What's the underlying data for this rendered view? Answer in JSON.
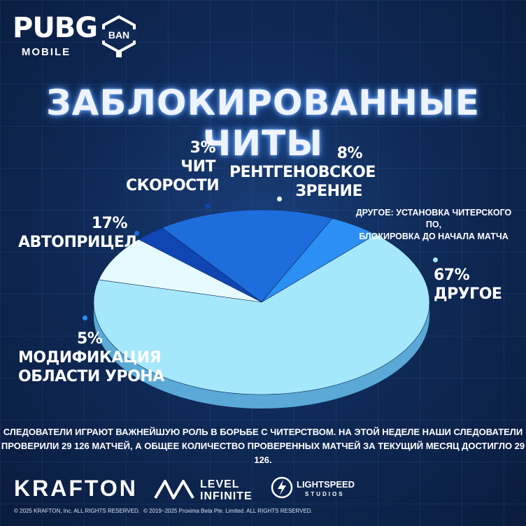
{
  "header": {
    "logo_main": "PUBG",
    "logo_sub": "MOBILE",
    "badge_text": "BAN",
    "title": "ЗАБЛОКИРОВАННЫЕ ЧИТЫ"
  },
  "chart_data": {
    "type": "pie",
    "title": "ЗАБЛОКИРОВАННЫЕ ЧИТЫ",
    "slices": [
      {
        "name": "ДРУГОЕ",
        "value": 67,
        "label": "67%",
        "color": "#a6e8fb"
      },
      {
        "name": "МОДИФИКАЦИЯ ОБЛАСТИ УРОНА",
        "value": 5,
        "label": "5%",
        "color": "#2b8ff4"
      },
      {
        "name": "АВТОПРИЦЕЛ",
        "value": 17,
        "label": "17%",
        "color": "#1e6ddc"
      },
      {
        "name": "ЧИТ СКОРОСТИ",
        "value": 3,
        "label": "3%",
        "color": "#0f46b4"
      },
      {
        "name": "РЕНТГЕНОВСКОЕ ЗРЕНИЕ",
        "value": 8,
        "label": "8%",
        "color": "#e6fbff"
      }
    ]
  },
  "labels": {
    "other_pct": "67%",
    "other_name": "ДРУГОЕ",
    "damage_pct": "5%",
    "damage_line1": "МОДИФИКАЦИЯ",
    "damage_line2": "ОБЛАСТИ УРОНА",
    "aim_pct": "17%",
    "aim_name": "АВТОПРИЦЕЛ",
    "speed_pct": "3%",
    "speed_line1": "ЧИТ",
    "speed_line2": "СКОРОСТИ",
    "xray_pct": "8%",
    "xray_line1": "РЕНТГЕНОВСКОЕ",
    "xray_line2": "ЗРЕНИЕ",
    "other_note_line1": "ДРУГОЕ: УСТАНОВКА ЧИТЕРСКОГО ПО,",
    "other_note_line2": "БЛОКИРОВКА ДО НАЧАЛА МАТЧА"
  },
  "footer": {
    "line1": "СЛЕДОВАТЕЛИ ИГРАЮТ ВАЖНЕЙШУЮ РОЛЬ В БОРЬБЕ С ЧИТЕРСТВОМ. НА ЭТОЙ НЕДЕЛЕ НАШИ СЛЕДОВАТЕЛИ",
    "line2": "ПРОВЕРИЛИ 29 126 МАТЧЕЙ, А ОБЩЕЕ КОЛИЧЕСТВО ПРОВЕРЕННЫХ МАТЧЕЙ ЗА ТЕКУЩИЙ МЕСЯЦ ДОСТИГЛО 29 126.",
    "brand_krafton": "KRAFTON",
    "brand_level": "LEVEL",
    "brand_infinite": "INFINITE",
    "brand_lightspeed": "LIGHTSPEED",
    "brand_studios": "STUDIOS",
    "copyright_krafton": "© 2025 KRAFTON, Inc. ALL RIGHTS RESERVED.",
    "copyright_proxima": "© 2019~2025 Proxima Beta Pte. Limited. ALL RIGHTS RESERVED."
  }
}
